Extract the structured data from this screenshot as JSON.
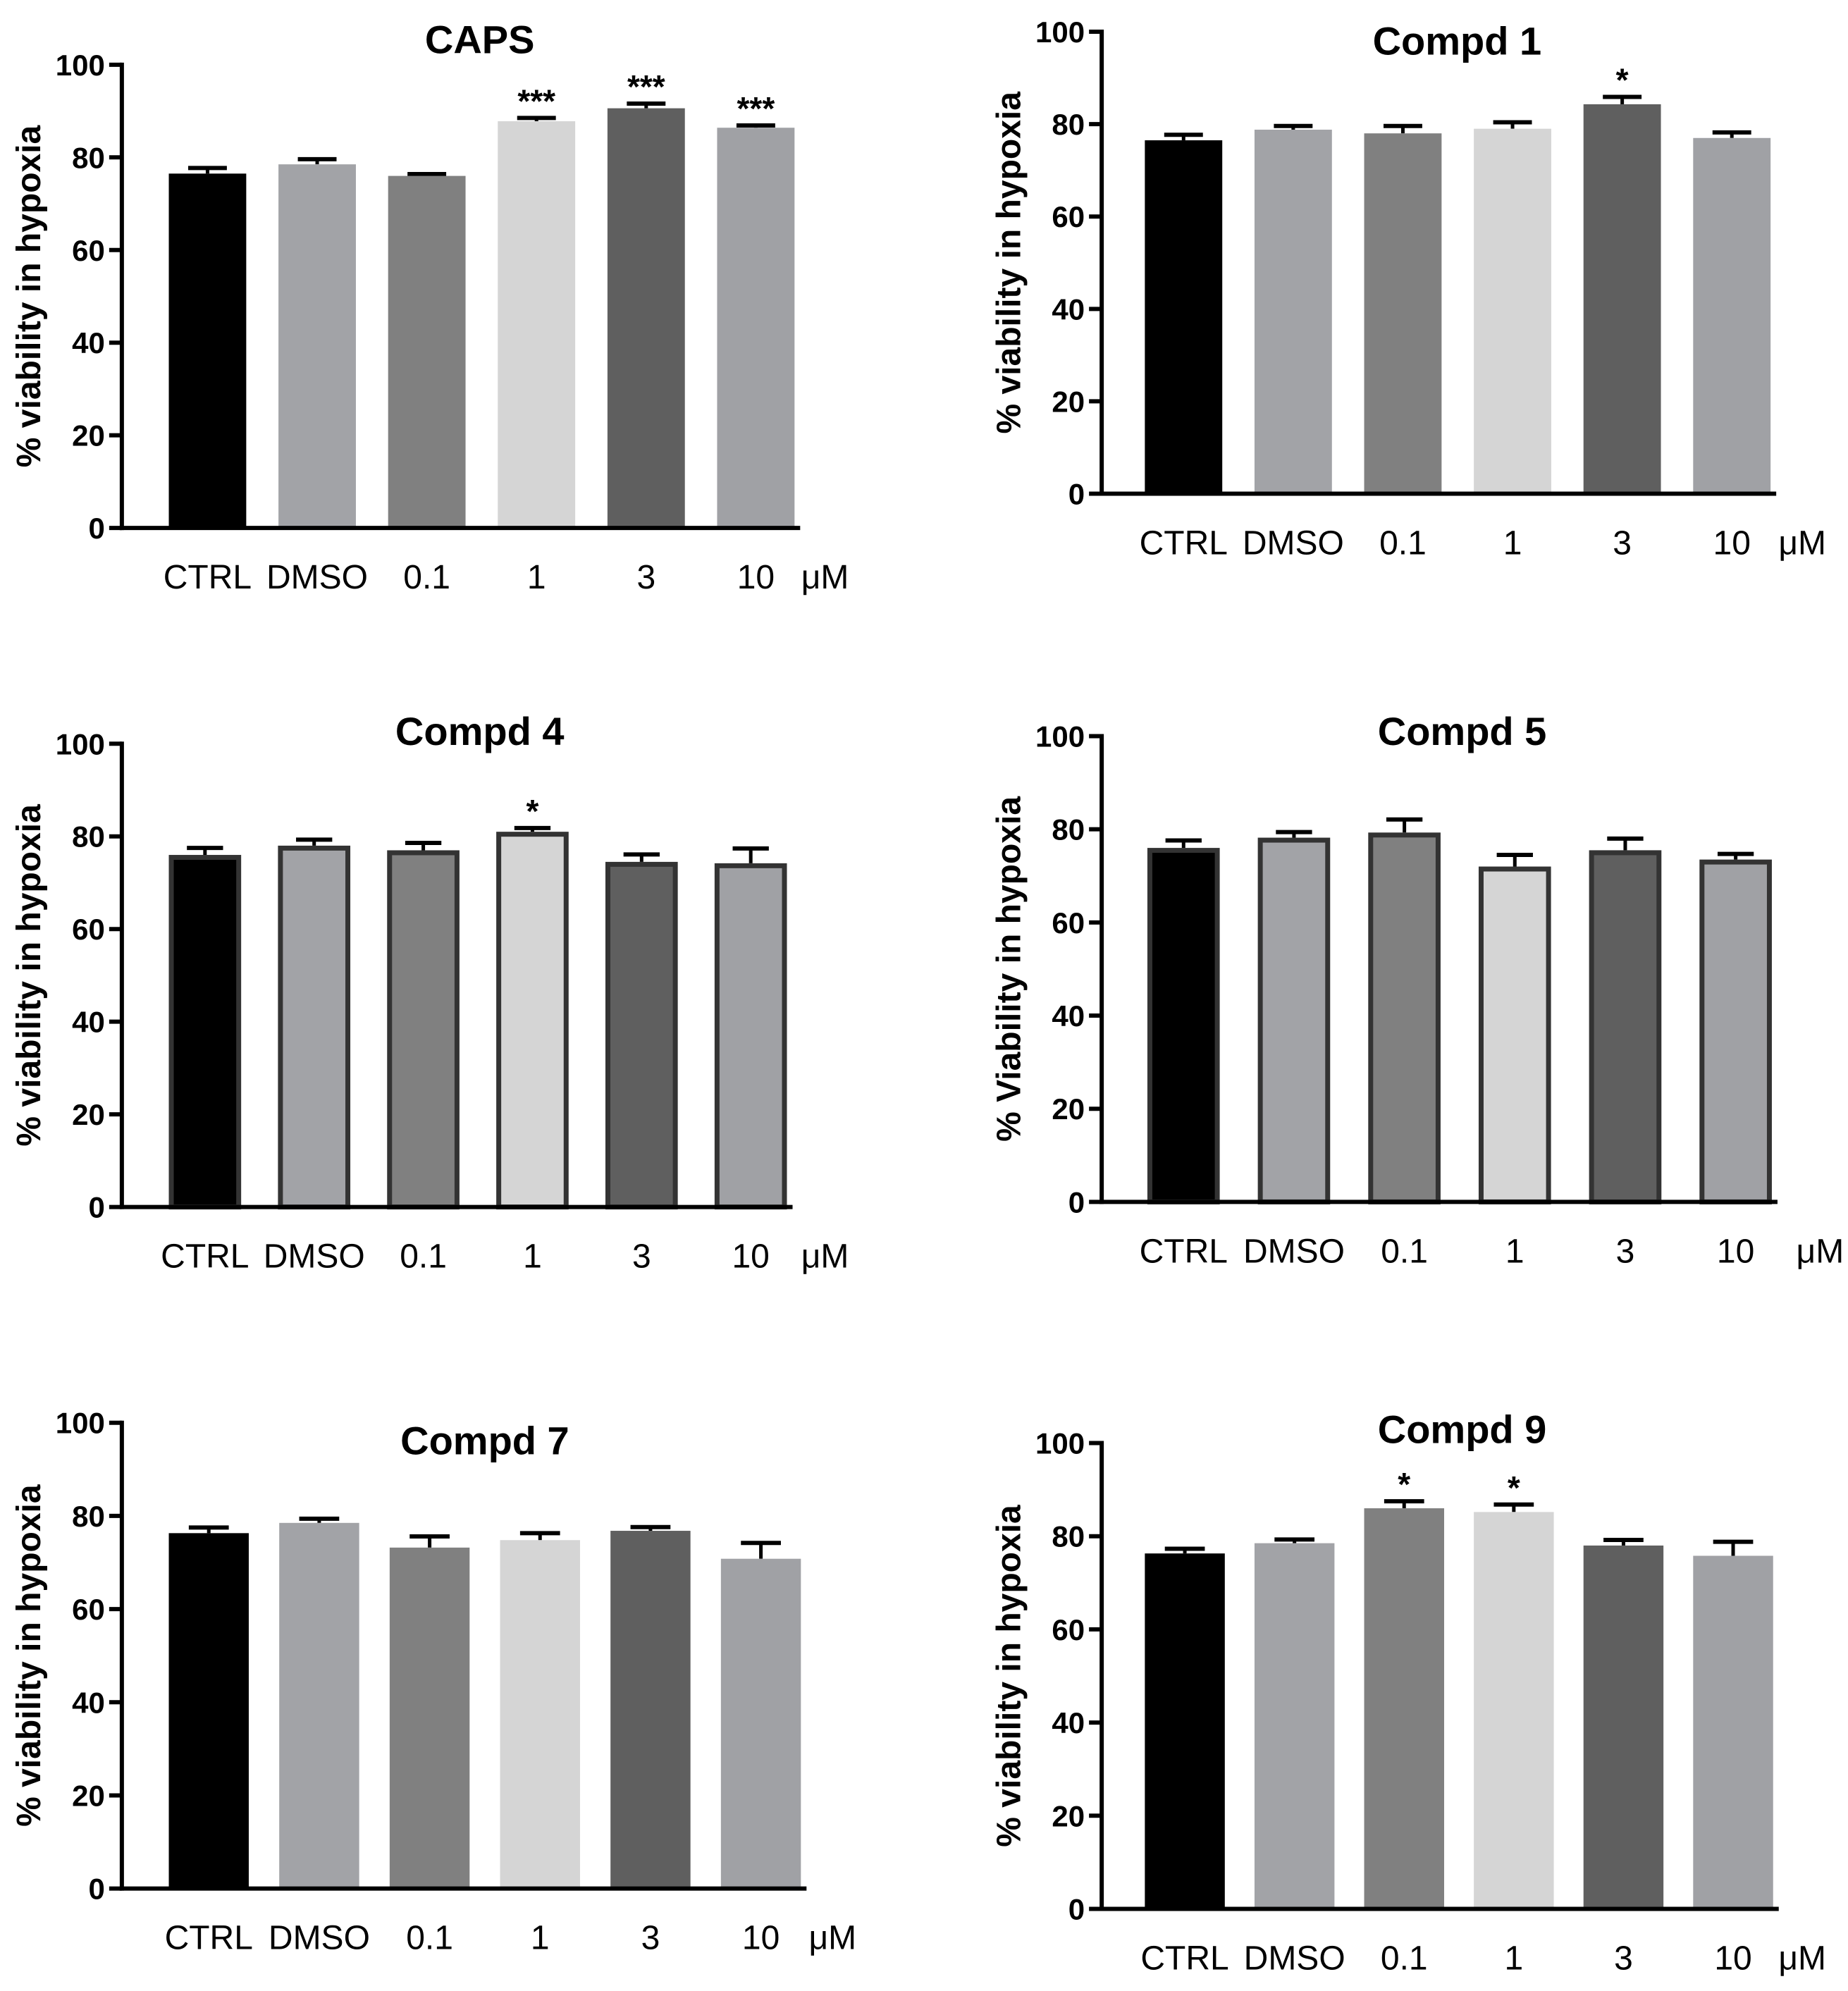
{
  "colors": {
    "CTRL": "#000000",
    "DMSO": "#a2a3a7",
    "0.1": "#808080",
    "1": "#d5d5d5",
    "3": "#5f5f5f",
    "10": "#a0a1a5",
    "outline": "#333333",
    "axis": "#000000"
  },
  "chart_data": [
    {
      "type": "bar",
      "title": "CAPS",
      "xlabel": "",
      "ylabel": "% viability in hypoxia",
      "unit_label": "μM",
      "categories": [
        "CTRL",
        "DMSO",
        "0.1",
        "1",
        "3",
        "10"
      ],
      "values": [
        76.5,
        78.5,
        76.0,
        87.8,
        90.6,
        86.4
      ],
      "errors": [
        1.2,
        1.1,
        0.4,
        0.7,
        1.0,
        0.5
      ],
      "annotations": [
        "",
        "",
        "",
        "***",
        "***",
        "***"
      ],
      "y_ticks": [
        "0",
        "20",
        "40",
        "60",
        "80",
        "100"
      ],
      "ylim": [
        0,
        100
      ],
      "outlined": false
    },
    {
      "type": "bar",
      "title": "Compd 1",
      "xlabel": "",
      "ylabel": "% viability in hypoxia",
      "unit_label": "μM",
      "categories": [
        "CTRL",
        "DMSO",
        "0.1",
        "1",
        "3",
        "10"
      ],
      "values": [
        76.5,
        78.8,
        78.0,
        79.0,
        84.3,
        77.0
      ],
      "errors": [
        1.2,
        0.8,
        1.6,
        1.4,
        1.6,
        1.2
      ],
      "annotations": [
        "",
        "",
        "",
        "",
        "*",
        ""
      ],
      "y_ticks": [
        "0",
        "20",
        "40",
        "60",
        "80",
        "100"
      ],
      "ylim": [
        0,
        100
      ],
      "outlined": false
    },
    {
      "type": "bar",
      "title": "Compd 4",
      "xlabel": "",
      "ylabel": "% viability in hypoxia",
      "unit_label": "μM",
      "categories": [
        "CTRL",
        "DMSO",
        "0.1",
        "1",
        "3",
        "10"
      ],
      "values": [
        76.0,
        78.0,
        77.0,
        81.0,
        74.5,
        74.2
      ],
      "errors": [
        1.5,
        1.3,
        1.6,
        0.8,
        1.6,
        3.2
      ],
      "annotations": [
        "",
        "",
        "",
        "*",
        "",
        ""
      ],
      "y_ticks": [
        "0",
        "20",
        "40",
        "60",
        "80",
        "100"
      ],
      "ylim": [
        0,
        100
      ],
      "outlined": true
    },
    {
      "type": "bar",
      "title": "Compd 5",
      "xlabel": "",
      "ylabel": "% Viability in hypoxia",
      "unit_label": "μM",
      "categories": [
        "CTRL",
        "DMSO",
        "0.1",
        "1",
        "3",
        "10"
      ],
      "values": [
        76.0,
        78.2,
        79.3,
        72.0,
        75.5,
        73.5
      ],
      "errors": [
        1.6,
        1.2,
        2.8,
        2.5,
        2.5,
        1.2
      ],
      "annotations": [
        "",
        "",
        "",
        "",
        "",
        ""
      ],
      "y_ticks": [
        "0",
        "20",
        "40",
        "60",
        "80",
        "100"
      ],
      "ylim": [
        0,
        100
      ],
      "outlined": true
    },
    {
      "type": "bar",
      "title": "Compd 7",
      "xlabel": "",
      "ylabel": "% viability in hypoxia",
      "unit_label": "μM",
      "categories": [
        "CTRL",
        "DMSO",
        "0.1",
        "1",
        "3",
        "10"
      ],
      "values": [
        76.3,
        78.5,
        73.2,
        74.8,
        76.8,
        70.8
      ],
      "errors": [
        1.2,
        0.9,
        2.4,
        1.5,
        0.8,
        3.4
      ],
      "annotations": [
        "",
        "",
        "",
        "",
        "",
        ""
      ],
      "y_ticks": [
        "0",
        "20",
        "40",
        "60",
        "80",
        "100"
      ],
      "ylim": [
        0,
        100
      ],
      "outlined": false
    },
    {
      "type": "bar",
      "title": "Compd 9",
      "xlabel": "",
      "ylabel": "% viability in hypoxia",
      "unit_label": "μM",
      "categories": [
        "CTRL",
        "DMSO",
        "0.1",
        "1",
        "3",
        "10"
      ],
      "values": [
        76.3,
        78.5,
        86.0,
        85.2,
        78.0,
        75.8
      ],
      "errors": [
        1.0,
        0.8,
        1.5,
        1.6,
        1.2,
        3.0
      ],
      "annotations": [
        "",
        "",
        "*",
        "*",
        "",
        ""
      ],
      "y_ticks": [
        "0",
        "20",
        "40",
        "60",
        "80",
        "100"
      ],
      "ylim": [
        0,
        100
      ],
      "outlined": false
    }
  ]
}
